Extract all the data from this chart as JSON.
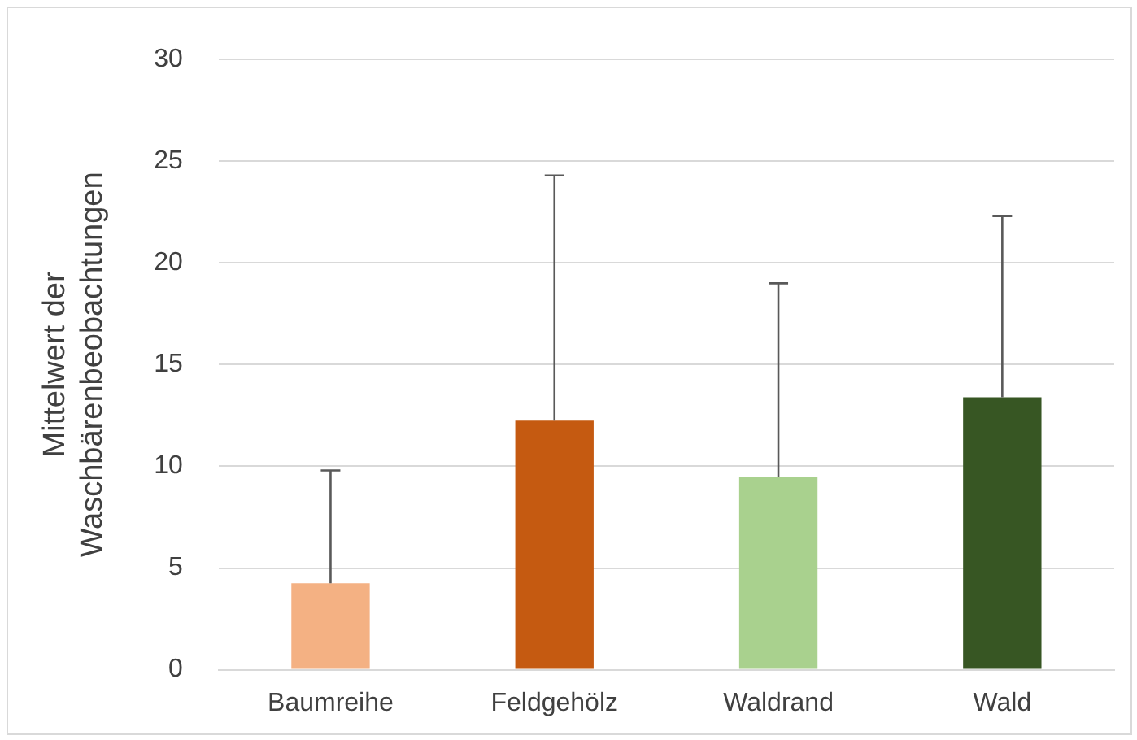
{
  "chart_data": {
    "type": "bar",
    "ylabel": "Mittelwert der Waschbärenbeobachtungen",
    "categories": [
      "Baumreihe",
      "Feldgehölz",
      "Waldrand",
      "Wald"
    ],
    "values": [
      4.25,
      12.25,
      9.5,
      13.4
    ],
    "colors": [
      "#f4b183",
      "#c55a11",
      "#a9d18e",
      "#375623"
    ],
    "errors": [
      [
        4.25,
        9.8
      ],
      [
        12.25,
        24.3
      ],
      [
        9.5,
        19.0
      ],
      [
        13.4,
        22.3
      ]
    ],
    "ylim": [
      0,
      30
    ],
    "yticks": [
      0,
      5,
      10,
      15,
      20,
      25,
      30
    ],
    "grid": "y",
    "legend": false
  }
}
